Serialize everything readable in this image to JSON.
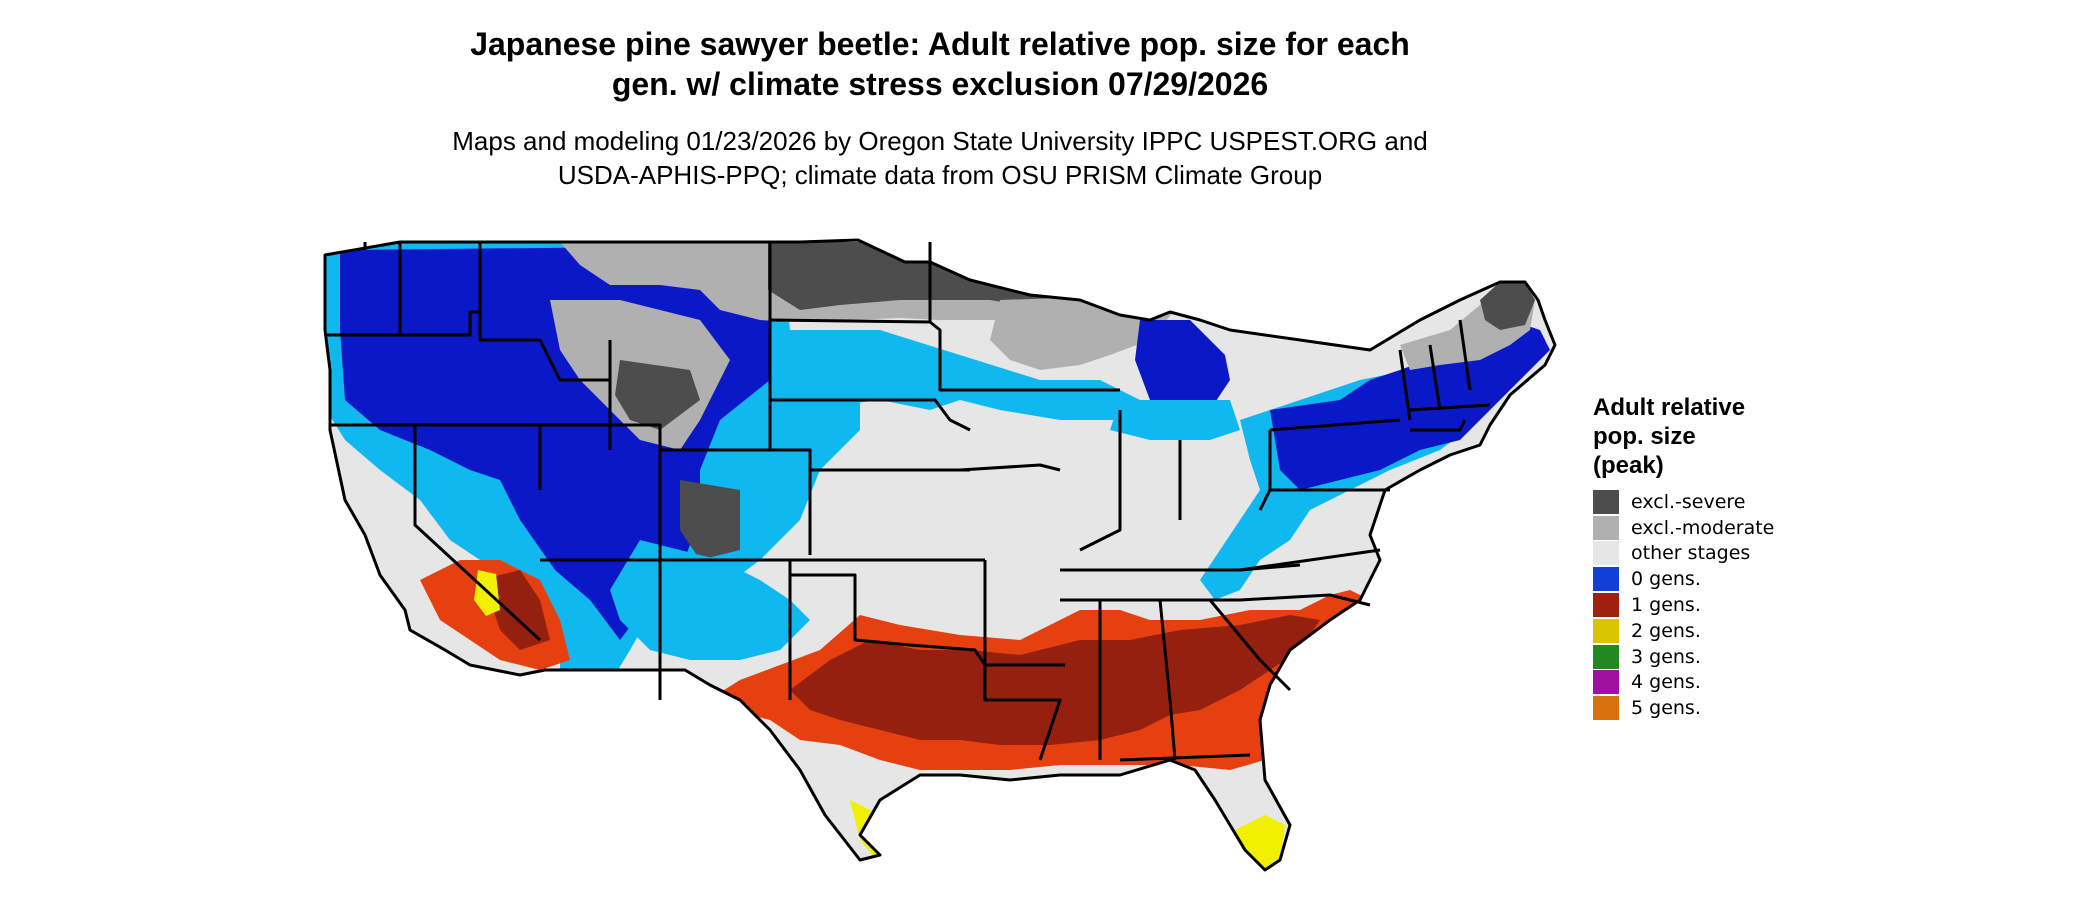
{
  "title_lines": [
    "Japanese pine sawyer beetle: Adult relative pop. size for each",
    "gen. w/ climate stress exclusion 07/29/2026"
  ],
  "subtitle_lines": [
    "Maps and modeling 01/23/2026 by Oregon State University IPPC USPEST.ORG and",
    "USDA-APHIS-PPQ; climate data from OSU PRISM Climate Group"
  ],
  "legend": {
    "title_lines": [
      "Adult relative",
      "pop. size",
      "(peak)"
    ],
    "items": [
      {
        "label": "excl.-severe",
        "color": "#4d4d4d"
      },
      {
        "label": "excl.-moderate",
        "color": "#b0b0b0"
      },
      {
        "label": "other stages",
        "color": "#e6e6e6"
      },
      {
        "label": "0 gens.",
        "color": "#1040d8"
      },
      {
        "label": "1 gens.",
        "color": "#a02010"
      },
      {
        "label": "2 gens.",
        "color": "#d8c400"
      },
      {
        "label": "3 gens.",
        "color": "#208a20"
      },
      {
        "label": "4 gens.",
        "color": "#a010a0"
      },
      {
        "label": "5 gens.",
        "color": "#d87010"
      }
    ]
  },
  "map_colors": {
    "land": "#e6e6e6",
    "severe": "#4d4d4d",
    "moderate": "#b0b0b0",
    "zero_dark": "#0a18c8",
    "zero_light": "#10b8f0",
    "one_dark": "#962010",
    "one_light": "#e64010",
    "two": "#f0f000",
    "border": "#000000"
  }
}
